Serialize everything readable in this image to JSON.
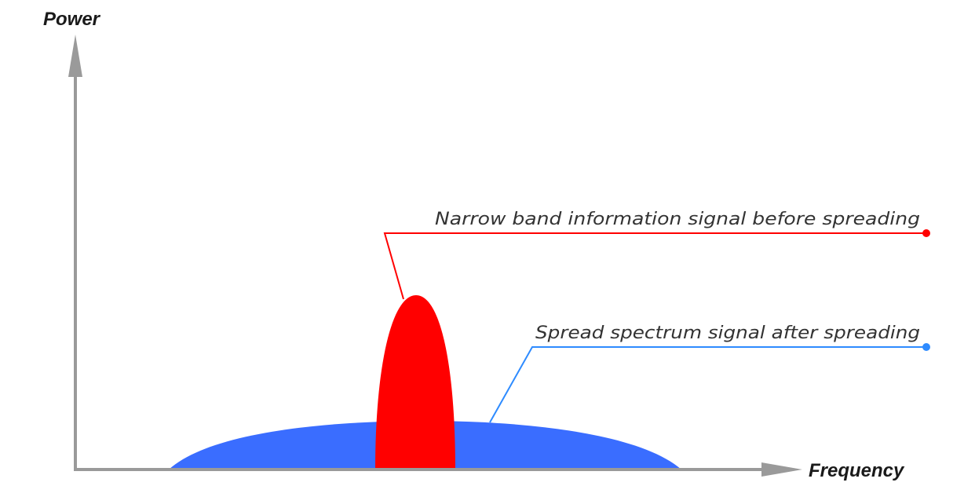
{
  "axes": {
    "y_label": "Power",
    "x_label": "Frequency",
    "axis_color": "#9a9a9a"
  },
  "signals": {
    "narrow_band": {
      "label": "Narrow band information signal before spreading",
      "color": "#ff0000"
    },
    "spread_spectrum": {
      "label": "Spread spectrum signal after spreading",
      "color": "#3a6dff",
      "leader_color": "#2e8bff"
    }
  }
}
